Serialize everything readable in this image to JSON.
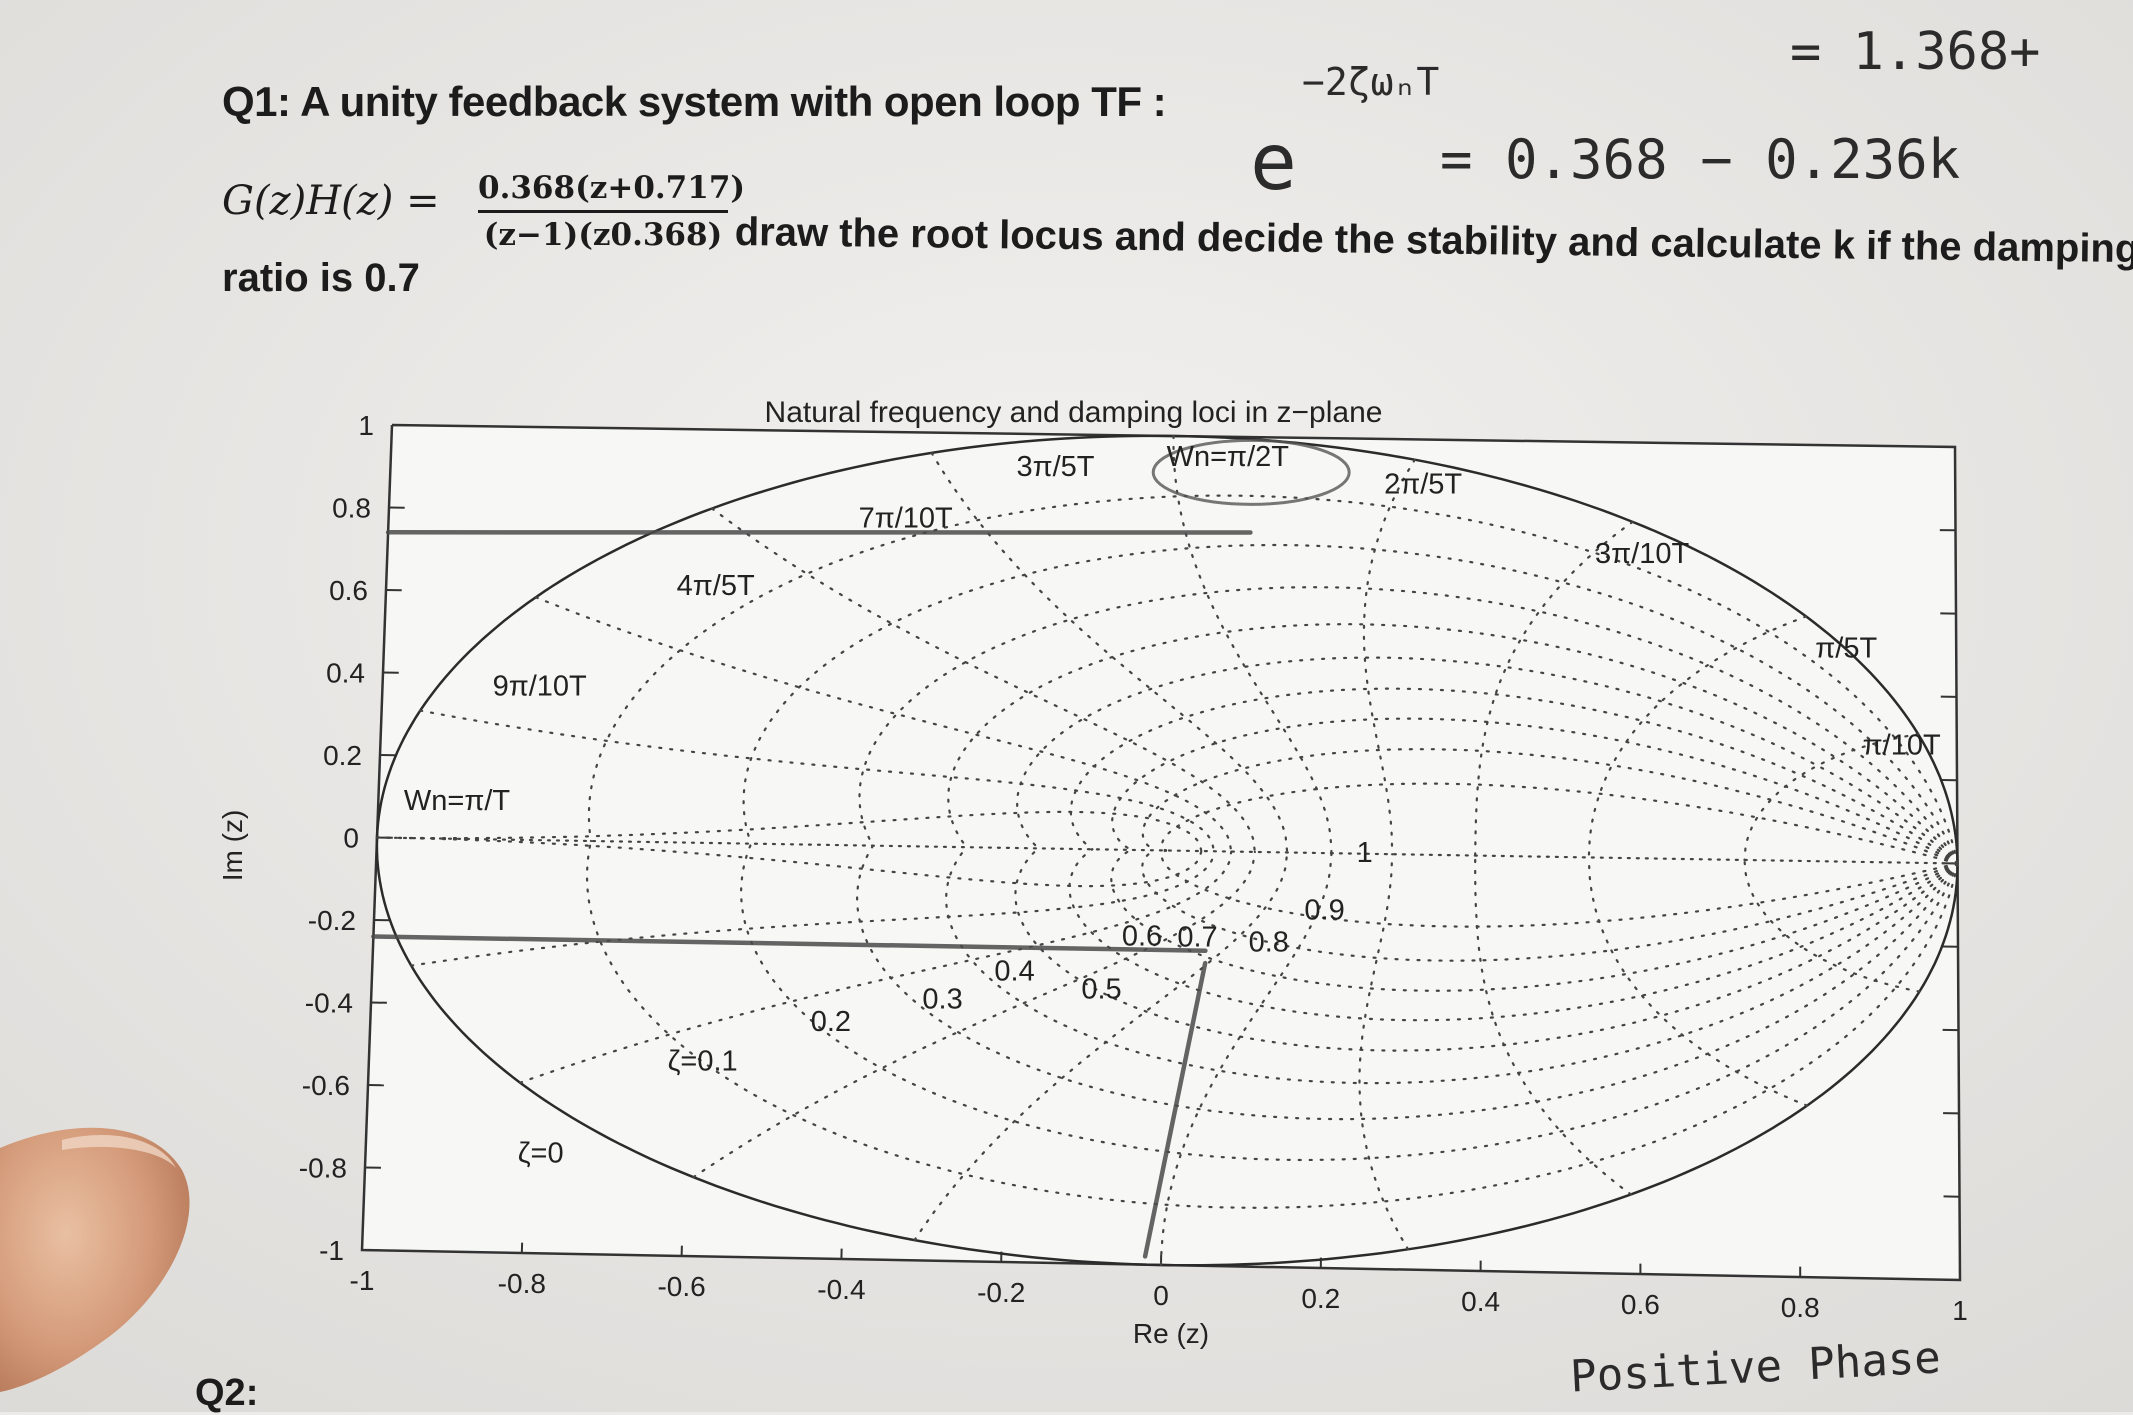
{
  "question": {
    "title": "Q1: A unity feedback  system with  open loop TF :",
    "equation_lhs": "G(z)H(z) =",
    "numerator": "0.368(z+0.717)",
    "denominator": "(z−1)(z0.368)",
    "body": "draw the root locus and decide the stability and calculate k if the damping",
    "tail": "ratio is 0.7",
    "next": "Q2:"
  },
  "handwriting": {
    "line1": "=  1.368+",
    "line2": "−2ζωₙT",
    "line3": "e",
    "line4": "= 0.368 − 0.236k",
    "line5": "Positive Phase"
  },
  "chart_data": {
    "type": "line",
    "title": "Natural frequency and damping loci in z−plane",
    "xlabel": "Re (z)",
    "ylabel": "Im (z)",
    "xlim": [
      -1,
      1
    ],
    "ylim": [
      -1,
      1
    ],
    "x_ticks": [
      "-1",
      "-0.8",
      "-0.6",
      "-0.4",
      "-0.2",
      "0",
      "0.2",
      "0.4",
      "0.6",
      "0.8",
      "1"
    ],
    "y_ticks": [
      "1",
      "0.8",
      "0.6",
      "0.4",
      "0.2",
      "0",
      "-0.2",
      "-0.4",
      "-0.6",
      "-0.8",
      "-1"
    ],
    "x_tick_values": [
      -1,
      -0.8,
      -0.6,
      -0.4,
      -0.2,
      0,
      0.2,
      0.4,
      0.6,
      0.8,
      1
    ],
    "y_tick_values": [
      1,
      0.8,
      0.6,
      0.4,
      0.2,
      0,
      -0.2,
      -0.4,
      -0.6,
      -0.8,
      -1
    ],
    "grid": "zgrid (dotted)",
    "damping_values": [
      0.1,
      0.2,
      0.3,
      0.4,
      0.5,
      0.6,
      0.7,
      0.8,
      0.9
    ],
    "wn_values_over_pi_T": [
      0.1,
      0.2,
      0.3,
      0.4,
      0.5,
      0.6,
      0.7,
      0.8,
      0.9,
      1.0
    ],
    "damping_labels": [
      {
        "text": "ζ=0",
        "x": -0.78,
        "y": -0.78
      },
      {
        "text": "ζ=0.1",
        "x": -0.58,
        "y": -0.55
      },
      {
        "text": "0.2",
        "x": -0.42,
        "y": -0.45
      },
      {
        "text": "0.3",
        "x": -0.28,
        "y": -0.39
      },
      {
        "text": "0.4",
        "x": -0.19,
        "y": -0.32
      },
      {
        "text": "0.5",
        "x": -0.08,
        "y": -0.36
      },
      {
        "text": "0.6",
        "x": -0.03,
        "y": -0.23
      },
      {
        "text": "0.7",
        "x": 0.04,
        "y": -0.23
      },
      {
        "text": "0.8",
        "x": 0.13,
        "y": -0.24
      },
      {
        "text": "0.9",
        "x": 0.2,
        "y": -0.16
      },
      {
        "text": "1",
        "x": 0.25,
        "y": -0.02
      }
    ],
    "wn_labels": [
      {
        "text": "Wn=π/T",
        "x": -0.9,
        "y": 0.07
      },
      {
        "text": "9π/10T",
        "x": -0.8,
        "y": 0.35
      },
      {
        "text": "4π/5T",
        "x": -0.58,
        "y": 0.6
      },
      {
        "text": "7π/10T",
        "x": -0.34,
        "y": 0.77
      },
      {
        "text": "3π/5T",
        "x": -0.15,
        "y": 0.9
      },
      {
        "text": "Wn=π/2T",
        "x": 0.07,
        "y": 0.93
      },
      {
        "text": "2π/5T",
        "x": 0.32,
        "y": 0.87
      },
      {
        "text": "3π/10T",
        "x": 0.6,
        "y": 0.71
      },
      {
        "text": "π/5T",
        "x": 0.86,
        "y": 0.49
      },
      {
        "text": "π/10T",
        "x": 0.93,
        "y": 0.26
      }
    ],
    "hand_drawn_lines": [
      {
        "name": "upper-horizontal",
        "points": [
          [
            -1,
            0.74
          ],
          [
            0.1,
            0.77
          ]
        ]
      },
      {
        "name": "lower-horizontal",
        "points": [
          [
            -1,
            -0.24
          ],
          [
            0.05,
            -0.24
          ]
        ]
      },
      {
        "name": "diagonal",
        "points": [
          [
            0.05,
            -0.27
          ],
          [
            -0.02,
            -0.98
          ]
        ]
      }
    ]
  }
}
